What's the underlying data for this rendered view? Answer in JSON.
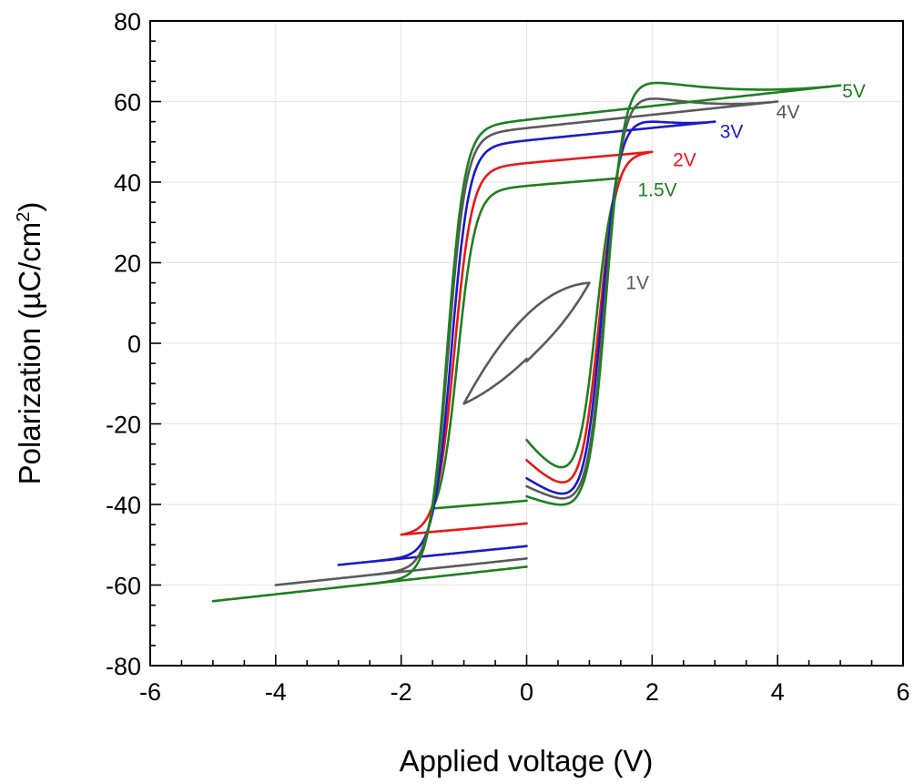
{
  "chart_data": {
    "type": "line",
    "title": "",
    "xlabel": "Applied voltage (V)",
    "ylabel_main": "Polarization (",
    "ylabel_mu": "µ",
    "ylabel_unit": "C/cm",
    "ylabel_sup": "2",
    "ylabel_close": ")",
    "xlim": [
      -6,
      6
    ],
    "ylim": [
      -80,
      80
    ],
    "x_ticks": [
      -6,
      -4,
      -2,
      0,
      2,
      4,
      6
    ],
    "y_ticks": [
      -80,
      -60,
      -40,
      -20,
      0,
      20,
      40,
      60,
      80
    ],
    "x_tick_labels": [
      "-6",
      "-4",
      "-2",
      "0",
      "2",
      "4",
      "6"
    ],
    "y_tick_labels": [
      "-80",
      "-60",
      "-40",
      "-20",
      "0",
      "20",
      "40",
      "60",
      "80"
    ],
    "grid": true,
    "legend": "none",
    "series": [
      {
        "name": "1V",
        "color": "#5a5a5a",
        "vmax": 1.0,
        "coercive": 0,
        "pmax": 15.0,
        "pr": 7.0,
        "start": -4.5,
        "label_x": 1.58,
        "label_y": 13.5
      },
      {
        "name": "1.5V",
        "color": "#1f7f1f",
        "vmax": 1.5,
        "coercive": 1.1,
        "pmax": 41.0,
        "pr": 24.0,
        "start": -24.0,
        "label_x": 1.77,
        "label_y": 36.5
      },
      {
        "name": "2V",
        "color": "#e81818",
        "vmax": 2.0,
        "coercive": 1.15,
        "pmax": 47.5,
        "pr": 29.5,
        "start": -29.0,
        "label_x": 2.33,
        "label_y": 44.0
      },
      {
        "name": "3V",
        "color": "#1a1ac8",
        "vmax": 3.0,
        "coercive": 1.2,
        "pmax": 55.0,
        "pr": 34.0,
        "start": -33.5,
        "label_x": 3.08,
        "label_y": 51.0
      },
      {
        "name": "4V",
        "color": "#5a5a5a",
        "vmax": 4.0,
        "coercive": 1.25,
        "pmax": 60.0,
        "pr": 36.0,
        "start": -35.5,
        "label_x": 3.98,
        "label_y": 55.8
      },
      {
        "name": "5V",
        "color": "#1f7f1f",
        "vmax": 5.0,
        "coercive": 1.27,
        "pmax": 64.0,
        "pr": 37.5,
        "start": -38.0,
        "label_x": 5.03,
        "label_y": 61.0
      }
    ]
  }
}
